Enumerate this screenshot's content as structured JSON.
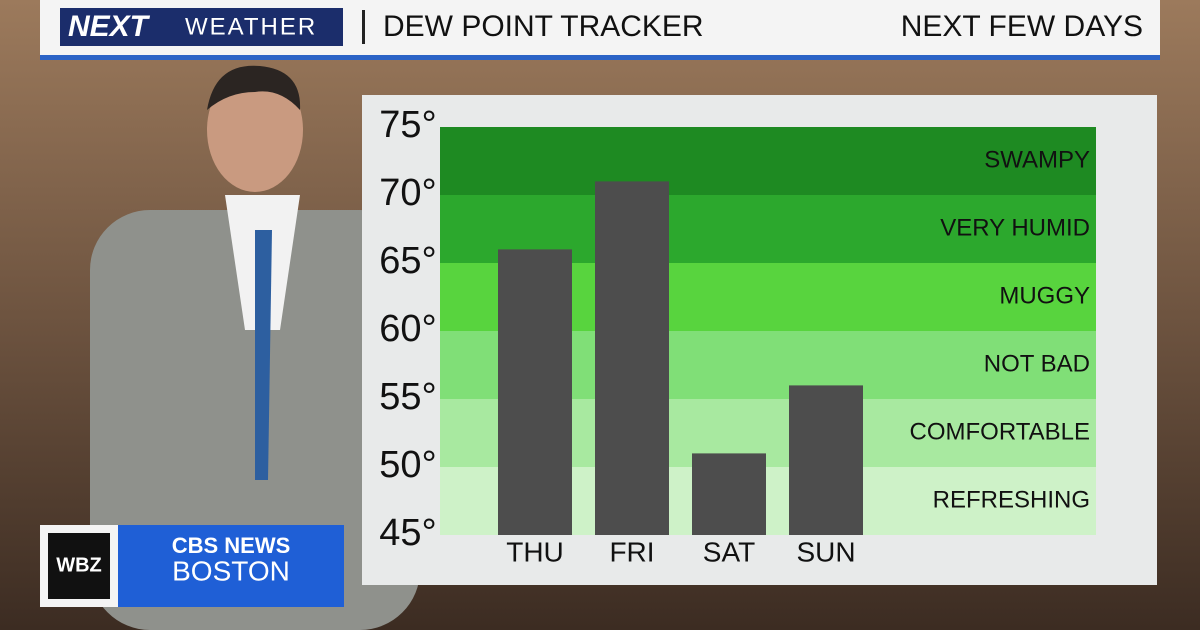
{
  "header": {
    "logo_next": "NEXT",
    "logo_weather": "WEATHER",
    "title": "DEW POINT TRACKER",
    "subtitle": "NEXT FEW DAYS"
  },
  "station": {
    "call": "WBZ",
    "network": "CBS NEWS",
    "city": "BOSTON"
  },
  "chart_data": {
    "type": "bar",
    "categories": [
      "THU",
      "FRI",
      "SAT",
      "SUN"
    ],
    "values": [
      66,
      71,
      51,
      56
    ],
    "color": "#4d4d4d",
    "ylim": [
      45,
      75
    ],
    "yticks": [
      {
        "value": 45,
        "label": "45°"
      },
      {
        "value": 50,
        "label": "50°"
      },
      {
        "value": 55,
        "label": "55°"
      },
      {
        "value": 60,
        "label": "60°"
      },
      {
        "value": 65,
        "label": "65°"
      },
      {
        "value": 70,
        "label": "70°"
      },
      {
        "value": 75,
        "label": "75°"
      }
    ],
    "bands": [
      {
        "label": "SWAMPY",
        "from": 70,
        "to": 75,
        "color": "#1e8a22"
      },
      {
        "label": "VERY HUMID",
        "from": 65,
        "to": 70,
        "color": "#2ca82d"
      },
      {
        "label": "MUGGY",
        "from": 60,
        "to": 65,
        "color": "#58d43e"
      },
      {
        "label": "NOT BAD",
        "from": 55,
        "to": 60,
        "color": "#80df77"
      },
      {
        "label": "COMFORTABLE",
        "from": 50,
        "to": 55,
        "color": "#a8e9a0"
      },
      {
        "label": "REFRESHING",
        "from": 45,
        "to": 50,
        "color": "#cef2c8"
      }
    ]
  }
}
